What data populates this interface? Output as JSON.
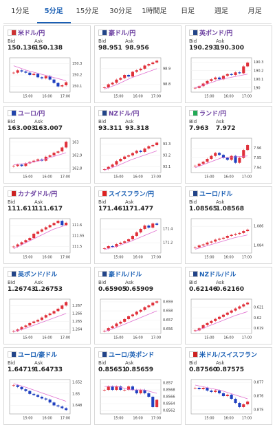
{
  "tabs": [
    "1分足",
    "5分足",
    "15分足",
    "30分足",
    "1時間足",
    "日足",
    "週足",
    "月足"
  ],
  "active_tab": 1,
  "bid_label": "Bid",
  "ask_label": "Ask",
  "x_labels": [
    "15:00",
    "16:00",
    "17:00"
  ],
  "cards": [
    {
      "name": "米ドル/円",
      "name_color": "#6b3fa0",
      "bid": "150.136",
      "ask": "150.138",
      "ylim": [
        150.05,
        150.35
      ],
      "yticks": [
        150.3,
        150.2,
        150.1
      ],
      "closes": [
        150.22,
        150.24,
        150.23,
        150.22,
        150.2,
        150.21,
        150.18,
        150.17,
        150.19,
        150.16,
        150.13,
        150.1,
        150.11,
        150.136
      ],
      "ma": [
        150.28,
        150.24,
        150.21,
        150.18,
        150.15
      ]
    },
    {
      "name": "豪ドル/円",
      "name_color": "#6b3fa0",
      "bid": "98.951",
      "ask": "98.956",
      "ylim": [
        98.75,
        98.97
      ],
      "yticks": [
        98.9,
        98.8
      ],
      "closes": [
        98.78,
        98.8,
        98.81,
        98.83,
        98.84,
        98.86,
        98.85,
        98.88,
        98.89,
        98.9,
        98.92,
        98.93,
        98.94,
        98.951
      ],
      "ma": [
        98.77,
        98.8,
        98.84,
        98.87,
        98.9
      ]
    },
    {
      "name": "英ポンド/円",
      "name_color": "#6b3fa0",
      "bid": "190.293",
      "ask": "190.300",
      "ylim": [
        189.95,
        190.35
      ],
      "yticks": [
        190.3,
        190.2,
        190.1,
        190
      ],
      "closes": [
        190.0,
        190.02,
        190.05,
        190.08,
        190.1,
        190.12,
        190.1,
        190.14,
        190.16,
        190.15,
        190.18,
        190.17,
        190.25,
        190.293
      ],
      "ma": [
        190.0,
        190.05,
        190.1,
        190.13,
        190.16
      ]
    },
    {
      "name": "ユーロ/円",
      "name_color": "#6b3fa0",
      "bid": "163.003",
      "ask": "163.007",
      "ylim": [
        162.77,
        163.03
      ],
      "yticks": [
        163,
        162.9,
        162.8
      ],
      "closes": [
        162.82,
        162.83,
        162.82,
        162.84,
        162.85,
        162.86,
        162.87,
        162.86,
        162.89,
        162.9,
        162.92,
        162.93,
        162.96,
        163.003
      ],
      "ma": [
        162.83,
        162.84,
        162.86,
        162.89,
        162.92
      ]
    },
    {
      "name": "NZドル/円",
      "name_color": "#6b3fa0",
      "bid": "93.311",
      "ask": "93.318",
      "ylim": [
        93.05,
        93.35
      ],
      "yticks": [
        93.3,
        93.2,
        93.1
      ],
      "closes": [
        93.08,
        93.1,
        93.12,
        93.15,
        93.17,
        93.19,
        93.2,
        93.22,
        93.24,
        93.23,
        93.26,
        93.28,
        93.29,
        93.311
      ],
      "ma": [
        93.07,
        93.11,
        93.16,
        93.2,
        93.24
      ]
    },
    {
      "name": "ランド/円",
      "name_color": "#6b3fa0",
      "bid": "7.963",
      "ask": "7.972",
      "ylim": [
        7.935,
        7.97
      ],
      "yticks": [
        7.96,
        7.95,
        7.94
      ],
      "closes": [
        7.942,
        7.944,
        7.946,
        7.949,
        7.952,
        7.955,
        7.953,
        7.95,
        7.948,
        7.952,
        7.945,
        7.95,
        7.958,
        7.963
      ],
      "ma": [
        7.94,
        7.945,
        7.95,
        7.951,
        7.952
      ]
    },
    {
      "name": "カナダドル/円",
      "name_color": "#6b3fa0",
      "bid": "111.611",
      "ask": "111.617",
      "ylim": [
        111.47,
        111.63
      ],
      "yticks": [
        111.6,
        111.55,
        111.5
      ],
      "closes": [
        111.5,
        111.51,
        111.52,
        111.53,
        111.54,
        111.56,
        111.57,
        111.58,
        111.59,
        111.6,
        111.61,
        111.62,
        111.6,
        111.611
      ],
      "ma": [
        111.49,
        111.52,
        111.55,
        111.58,
        111.6
      ]
    },
    {
      "name": "スイスフラン/円",
      "name_color": "#1a5fb4",
      "bid": "171.461",
      "ask": "171.477",
      "ylim": [
        171.05,
        171.55
      ],
      "yticks": [
        171.4,
        171.2
      ],
      "closes": [
        171.12,
        171.15,
        171.14,
        171.18,
        171.2,
        171.22,
        171.25,
        171.3,
        171.35,
        171.4,
        171.45,
        171.42,
        171.48,
        171.461
      ],
      "ma": [
        171.1,
        171.15,
        171.22,
        171.3,
        171.38
      ]
    },
    {
      "name": "ユーロ/ドル",
      "name_color": "#1a5fb4",
      "bid": "1.08565",
      "ask": "1.08568",
      "ylim": [
        1.0832,
        1.0868
      ],
      "yticks": [
        1.086,
        1.084
      ],
      "closes": [
        1.0838,
        1.084,
        1.0841,
        1.0843,
        1.0844,
        1.0846,
        1.0847,
        1.0848,
        1.085,
        1.0851,
        1.0852,
        1.0853,
        1.0855,
        1.08565
      ],
      "ma": [
        1.0836,
        1.084,
        1.0844,
        1.0848,
        1.0851
      ]
    },
    {
      "name": "英ポンド/ドル",
      "name_color": "#1a5fb4",
      "bid": "1.26743",
      "ask": "1.26753",
      "ylim": [
        1.2635,
        1.2678
      ],
      "yticks": [
        1.267,
        1.266,
        1.265,
        1.264
      ],
      "closes": [
        1.2638,
        1.264,
        1.2643,
        1.2645,
        1.2648,
        1.265,
        1.2652,
        1.2655,
        1.2658,
        1.266,
        1.2663,
        1.2666,
        1.267,
        1.26743
      ],
      "ma": [
        1.2637,
        1.2642,
        1.2648,
        1.2654,
        1.266
      ]
    },
    {
      "name": "豪ドル/ドル",
      "name_color": "#1a5fb4",
      "bid": "0.65905",
      "ask": "0.65909",
      "ylim": [
        0.6555,
        0.6593
      ],
      "yticks": [
        0.659,
        0.658,
        0.657,
        0.656
      ],
      "closes": [
        0.6558,
        0.6561,
        0.6563,
        0.6566,
        0.6568,
        0.6571,
        0.6574,
        0.6576,
        0.6579,
        0.6581,
        0.6584,
        0.6586,
        0.6589,
        0.65905
      ],
      "ma": [
        0.6557,
        0.6562,
        0.6568,
        0.6574,
        0.658
      ]
    },
    {
      "name": "NZドル/ドル",
      "name_color": "#1a5fb4",
      "bid": "0.62146",
      "ask": "0.62160",
      "ylim": [
        0.6185,
        0.6218
      ],
      "yticks": [
        0.621,
        0.62,
        0.619
      ],
      "closes": [
        0.6188,
        0.619,
        0.6193,
        0.6195,
        0.6197,
        0.6199,
        0.6201,
        0.6203,
        0.6205,
        0.6207,
        0.6209,
        0.6211,
        0.6213,
        0.62146
      ],
      "ma": [
        0.6187,
        0.6192,
        0.6197,
        0.6202,
        0.6206
      ]
    },
    {
      "name": "ユーロ/豪ドル",
      "name_color": "#1a5fb4",
      "bid": "1.64719",
      "ask": "1.64733",
      "ylim": [
        1.6465,
        1.6525
      ],
      "yticks": [
        1.652,
        1.65,
        1.648
      ],
      "closes": [
        1.6515,
        1.6512,
        1.6508,
        1.6505,
        1.65,
        1.6498,
        1.6495,
        1.6492,
        1.649,
        1.6485,
        1.648,
        1.6478,
        1.6475,
        1.64719
      ],
      "ma": [
        1.6518,
        1.6511,
        1.6503,
        1.6495,
        1.6487
      ]
    },
    {
      "name": "ユーロ/英ポンド",
      "name_color": "#1a5fb4",
      "bid": "0.85651",
      "ask": "0.85659",
      "ylim": [
        0.8561,
        0.8571
      ],
      "yticks": [
        0.857,
        0.8568,
        0.8566,
        0.8564,
        0.8562
      ],
      "closes": [
        0.8568,
        0.8569,
        0.8568,
        0.8569,
        0.8568,
        0.8568,
        0.8569,
        0.8568,
        0.8567,
        0.8568,
        0.8567,
        0.8566,
        0.8563,
        0.85651
      ],
      "ma": [
        0.8569,
        0.8569,
        0.8568,
        0.8568,
        0.8567
      ]
    },
    {
      "name": "米ドル/スイスフラン",
      "name_color": "#1a5fb4",
      "bid": "0.87560",
      "ask": "0.87575",
      "ylim": [
        0.8747,
        0.8772
      ],
      "yticks": [
        0.877,
        0.876,
        0.875
      ],
      "closes": [
        0.8766,
        0.8765,
        0.8766,
        0.8764,
        0.8763,
        0.8764,
        0.8762,
        0.876,
        0.8761,
        0.8758,
        0.8755,
        0.8752,
        0.8754,
        0.8756
      ],
      "ma": [
        0.8768,
        0.8766,
        0.8764,
        0.8761,
        0.8758
      ]
    }
  ]
}
